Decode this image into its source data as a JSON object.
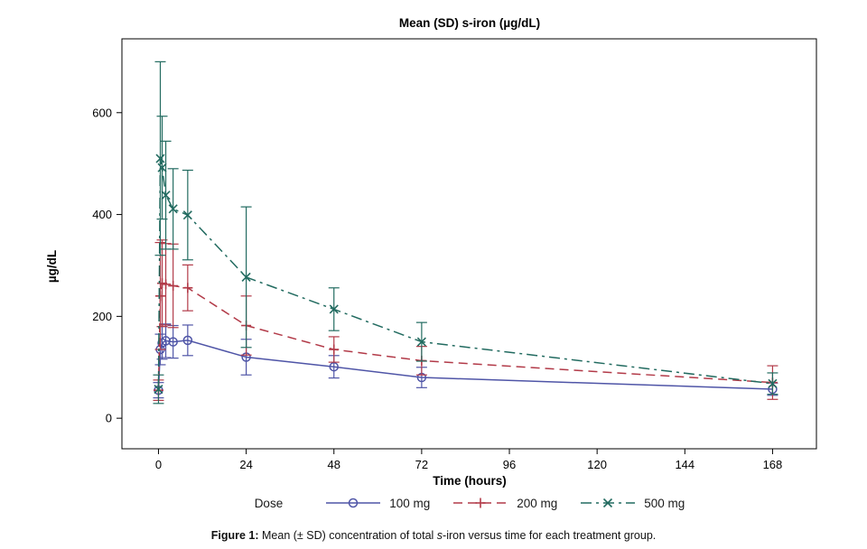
{
  "chart_data": {
    "type": "line",
    "title": "Mean (SD) s-iron (µg/dL)",
    "xlabel": "Time (hours)",
    "ylabel": "µg/dL",
    "x_ticks": [
      0,
      24,
      48,
      72,
      96,
      120,
      144,
      168
    ],
    "y_ticks": [
      0,
      200,
      400,
      600
    ],
    "xlim": [
      -10,
      180
    ],
    "ylim": [
      -60,
      745
    ],
    "grid": false,
    "error_bars": "±SD",
    "x": [
      0,
      0.5,
      1,
      2,
      4,
      8,
      24,
      48,
      72,
      168
    ],
    "series": [
      {
        "name": "100 mg",
        "color": "#4f55a7",
        "marker": "circle",
        "line_style": "solid",
        "dash": "",
        "mean": [
          55,
          135,
          148,
          152,
          150,
          153,
          120,
          101,
          80,
          57
        ],
        "sd": [
          15,
          30,
          32,
          33,
          32,
          30,
          35,
          22,
          20,
          12
        ]
      },
      {
        "name": "200 mg",
        "color": "#b23a48",
        "marker": "plus",
        "line_style": "dashed",
        "dash": "10,6",
        "mean": [
          55,
          240,
          265,
          263,
          260,
          256,
          182,
          135,
          113,
          70
        ],
        "sd": [
          20,
          105,
          85,
          80,
          82,
          45,
          58,
          25,
          28,
          33
        ]
      },
      {
        "name": "500 mg",
        "color": "#226b60",
        "marker": "x",
        "line_style": "dash-dot",
        "dash": "12,5,3,5",
        "mean": [
          57,
          510,
          492,
          438,
          411,
          399,
          277,
          214,
          150,
          68
        ],
        "sd": [
          28,
          190,
          101,
          106,
          79,
          88,
          138,
          42,
          38,
          21
        ]
      }
    ],
    "legend": {
      "title": "Dose",
      "position": "bottom"
    }
  },
  "caption": {
    "prefix": "Figure 1:",
    "body_before_italic": " Mean (± SD) concentration of total ",
    "italic": "s",
    "body_after_italic": "-iron versus time for each treatment group."
  }
}
